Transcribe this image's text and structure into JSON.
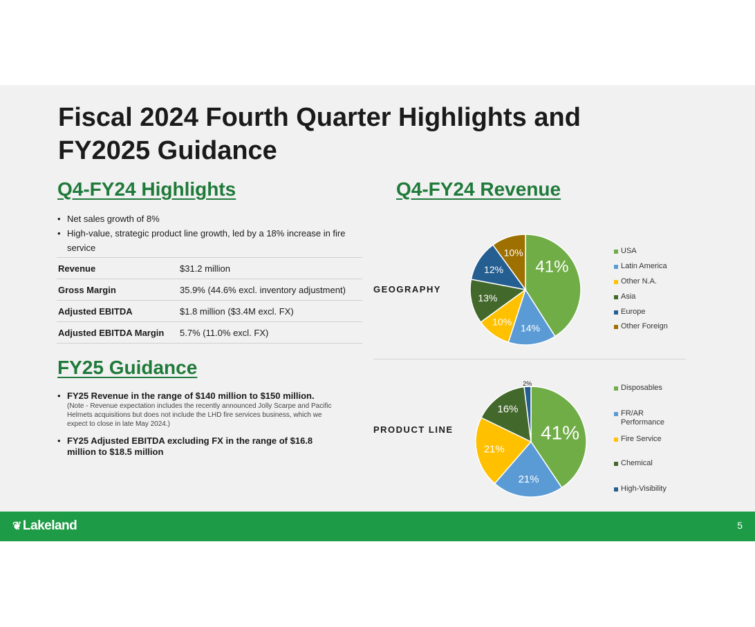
{
  "slide": {
    "title": "Fiscal 2024 Fourth Quarter Highlights and FY2025 Guidance",
    "page_number": "5",
    "logo_text": "Lakeland"
  },
  "highlights": {
    "heading": "Q4-FY24 Highlights",
    "bullets": [
      "Net sales growth of 8%",
      "High-value, strategic product line growth, led by a 18% increase in fire service"
    ],
    "table": [
      {
        "label": "Revenue",
        "value": "$31.2 million"
      },
      {
        "label": "Gross Margin",
        "value": "35.9%  (44.6% excl. inventory adjustment)"
      },
      {
        "label": "Adjusted EBITDA",
        "value": "$1.8 million ($3.4M excl. FX)"
      },
      {
        "label": "Adjusted EBITDA Margin",
        "value": "5.7% (11.0% excl. FX)"
      }
    ]
  },
  "guidance": {
    "heading": "FY25 Guidance",
    "items": [
      {
        "main": "FY25 Revenue in the range of $140 million to $150 million.",
        "note": "(Note - Revenue expectation includes the recently announced Jolly Scarpe and Pacific Helmets acquisitions but does not include the LHD fire services business, which we expect to close in late May 2024.)"
      },
      {
        "main": "FY25 Adjusted EBITDA excluding FX in the range of $16.8 million to $18.5 million",
        "note": ""
      }
    ]
  },
  "revenue": {
    "heading": "Q4-FY24 Revenue"
  },
  "chart_data": [
    {
      "type": "pie",
      "title": "GEOGRAPHY",
      "legend_position": "right",
      "categories": [
        "USA",
        "Latin America",
        "Other N.A.",
        "Asia",
        "Europe",
        "Other Foreign"
      ],
      "values": [
        41,
        14,
        10,
        13,
        12,
        10
      ],
      "labels": [
        "41%",
        "14%",
        "10%",
        "13%",
        "12%",
        "10%"
      ],
      "colors": [
        "#70ad47",
        "#5b9bd5",
        "#ffc000",
        "#43682b",
        "#255e91",
        "#9e7000"
      ]
    },
    {
      "type": "pie",
      "title": "PRODUCT LINE",
      "legend_position": "right",
      "categories": [
        "Disposables",
        "FR/AR Performance",
        "Fire Service",
        "Chemical",
        "High-Visibility"
      ],
      "values": [
        41,
        21,
        21,
        16,
        2
      ],
      "labels": [
        "41%",
        "21%",
        "21%",
        "16%",
        "2%"
      ],
      "colors": [
        "#70ad47",
        "#5b9bd5",
        "#ffc000",
        "#43682b",
        "#255e91"
      ]
    }
  ]
}
